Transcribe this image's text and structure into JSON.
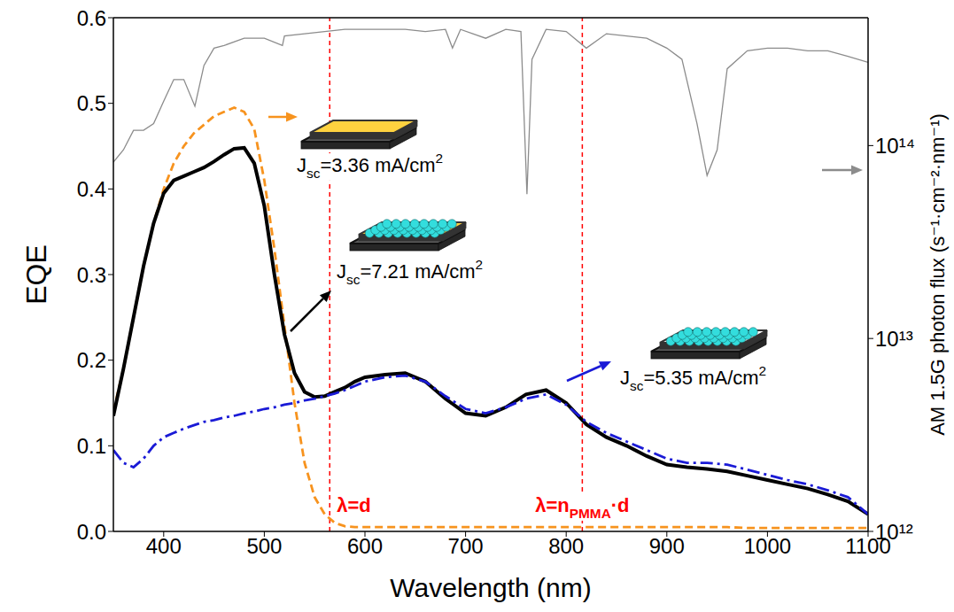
{
  "chart_data": {
    "type": "line",
    "x_label": "Wavelength (nm)",
    "y_label": "EQE",
    "y2_label": "AM 1.5G photon flux (s⁻¹·cm⁻²·nm⁻¹)",
    "xlim": [
      350,
      1100
    ],
    "xticks": [
      400,
      500,
      600,
      700,
      800,
      900,
      1000,
      1100
    ],
    "ylim": [
      0,
      0.6
    ],
    "yticks": [
      {
        "value": 0,
        "label": "0.0"
      },
      {
        "value": 0.1,
        "label": "0.1"
      },
      {
        "value": 0.2,
        "label": "0.2"
      },
      {
        "value": 0.3,
        "label": "0.3"
      },
      {
        "value": 0.4,
        "label": "0.4"
      },
      {
        "value": 0.5,
        "label": "0.5"
      },
      {
        "value": 0.6,
        "label": "0.6"
      }
    ],
    "y2lim": [
      1000000000000.0,
      460000000000000.0
    ],
    "y2ticks": [
      {
        "value": 1000000000000.0,
        "label": "10¹²"
      },
      {
        "value": 10000000000000.0,
        "label": "10¹³"
      },
      {
        "value": 100000000000000.0,
        "label": "10¹⁴"
      }
    ],
    "log": "y2",
    "grid": false,
    "series": [
      {
        "color": "#F7931E",
        "line_style": "dashed",
        "x": [
          350,
          360,
          370,
          380,
          390,
          400,
          410,
          420,
          430,
          440,
          450,
          460,
          470,
          480,
          490,
          500,
          510,
          520,
          530,
          540,
          550,
          560,
          570,
          580,
          590,
          600,
          620,
          640,
          660,
          680,
          700,
          720,
          740,
          760,
          780,
          800,
          820,
          840,
          860,
          880,
          900,
          920,
          940,
          960,
          980,
          1000,
          1020,
          1040,
          1060,
          1080,
          1100
        ],
        "values": [
          0.14,
          0.19,
          0.25,
          0.31,
          0.36,
          0.4,
          0.43,
          0.45,
          0.465,
          0.475,
          0.485,
          0.49,
          0.495,
          0.49,
          0.47,
          0.41,
          0.33,
          0.24,
          0.15,
          0.08,
          0.04,
          0.02,
          0.01,
          0.006,
          0.005,
          0.005,
          0.005,
          0.005,
          0.005,
          0.005,
          0.005,
          0.005,
          0.005,
          0.005,
          0.005,
          0.005,
          0.005,
          0.005,
          0.005,
          0.005,
          0.005,
          0.005,
          0.005,
          0.005,
          0.004,
          0.004,
          0.004,
          0.004,
          0.004,
          0.004,
          0.004
        ]
      },
      {
        "color": "#000000",
        "line_style": "solid",
        "x": [
          350,
          360,
          370,
          380,
          390,
          400,
          410,
          420,
          430,
          440,
          450,
          460,
          470,
          480,
          490,
          500,
          510,
          520,
          530,
          540,
          550,
          560,
          570,
          580,
          590,
          600,
          620,
          640,
          660,
          680,
          700,
          720,
          740,
          760,
          780,
          800,
          820,
          840,
          860,
          880,
          900,
          920,
          940,
          960,
          980,
          1000,
          1020,
          1040,
          1060,
          1080,
          1100
        ],
        "values": [
          0.135,
          0.19,
          0.25,
          0.31,
          0.36,
          0.395,
          0.41,
          0.415,
          0.42,
          0.425,
          0.432,
          0.44,
          0.447,
          0.448,
          0.43,
          0.38,
          0.3,
          0.23,
          0.185,
          0.163,
          0.157,
          0.158,
          0.163,
          0.168,
          0.175,
          0.18,
          0.183,
          0.185,
          0.175,
          0.155,
          0.138,
          0.135,
          0.145,
          0.16,
          0.165,
          0.15,
          0.125,
          0.11,
          0.1,
          0.088,
          0.078,
          0.075,
          0.073,
          0.07,
          0.065,
          0.06,
          0.055,
          0.05,
          0.043,
          0.035,
          0.02
        ]
      },
      {
        "color": "#1A1AD6",
        "line_style": "dashdot",
        "x": [
          350,
          360,
          370,
          380,
          390,
          400,
          410,
          420,
          430,
          440,
          450,
          460,
          470,
          480,
          490,
          500,
          510,
          520,
          530,
          540,
          550,
          560,
          570,
          580,
          590,
          600,
          620,
          640,
          660,
          680,
          700,
          720,
          740,
          760,
          780,
          800,
          820,
          840,
          860,
          880,
          900,
          920,
          940,
          960,
          980,
          1000,
          1020,
          1040,
          1060,
          1080,
          1100
        ],
        "values": [
          0.095,
          0.08,
          0.075,
          0.085,
          0.1,
          0.11,
          0.115,
          0.12,
          0.124,
          0.128,
          0.13,
          0.133,
          0.135,
          0.138,
          0.14,
          0.143,
          0.145,
          0.148,
          0.15,
          0.153,
          0.155,
          0.158,
          0.161,
          0.165,
          0.17,
          0.175,
          0.18,
          0.182,
          0.175,
          0.158,
          0.143,
          0.138,
          0.145,
          0.155,
          0.16,
          0.148,
          0.128,
          0.115,
          0.105,
          0.095,
          0.085,
          0.08,
          0.08,
          0.078,
          0.072,
          0.066,
          0.06,
          0.055,
          0.048,
          0.04,
          0.02
        ]
      },
      {
        "color": "#8C8C8C",
        "line_style": "solid",
        "axis": "y2",
        "x": [
          350,
          360,
          370,
          380,
          390,
          400,
          410,
          420,
          431,
          440,
          450,
          460,
          480,
          500,
          518,
          520,
          540,
          560,
          580,
          600,
          620,
          640,
          660,
          680,
          687,
          695,
          720,
          740,
          755,
          761,
          766,
          780,
          800,
          820,
          840,
          860,
          880,
          900,
          915,
          930,
          940,
          950,
          960,
          980,
          1000,
          1020,
          1040,
          1060,
          1080,
          1100
        ],
        "values": [
          82000000000000.0,
          95000000000000.0,
          120000000000000.0,
          120000000000000.0,
          130000000000000.0,
          170000000000000.0,
          220000000000000.0,
          220000000000000.0,
          160000000000000.0,
          260000000000000.0,
          320000000000000.0,
          330000000000000.0,
          360000000000000.0,
          360000000000000.0,
          330000000000000.0,
          370000000000000.0,
          380000000000000.0,
          390000000000000.0,
          400000000000000.0,
          400000000000000.0,
          400000000000000.0,
          400000000000000.0,
          390000000000000.0,
          400000000000000.0,
          320000000000000.0,
          400000000000000.0,
          360000000000000.0,
          400000000000000.0,
          390000000000000.0,
          56000000000000.0,
          280000000000000.0,
          400000000000000.0,
          390000000000000.0,
          320000000000000.0,
          380000000000000.0,
          370000000000000.0,
          360000000000000.0,
          320000000000000.0,
          280000000000000.0,
          130000000000000.0,
          70000000000000.0,
          95000000000000.0,
          250000000000000.0,
          310000000000000.0,
          320000000000000.0,
          320000000000000.0,
          310000000000000.0,
          310000000000000.0,
          290000000000000.0,
          270000000000000.0
        ]
      }
    ],
    "vlines": [
      {
        "x": 565,
        "color": "#FF0000",
        "text": [
          "λ=d"
        ]
      },
      {
        "x": 816,
        "color": "#FF0000",
        "text": [
          "λ=n",
          {
            "sub": "PMMA"
          },
          "·d"
        ]
      }
    ],
    "annotations": [
      {
        "text": [
          "J",
          {
            "sub": "sc"
          },
          "=3.36 mA/cm",
          {
            "sup": "2"
          }
        ]
      },
      {
        "text": [
          "J",
          {
            "sub": "sc"
          },
          "=7.21 mA/cm",
          {
            "sup": "2"
          }
        ]
      },
      {
        "text": [
          "J",
          {
            "sub": "sc"
          },
          "=5.35 mA/cm",
          {
            "sup": "2"
          }
        ]
      }
    ]
  }
}
